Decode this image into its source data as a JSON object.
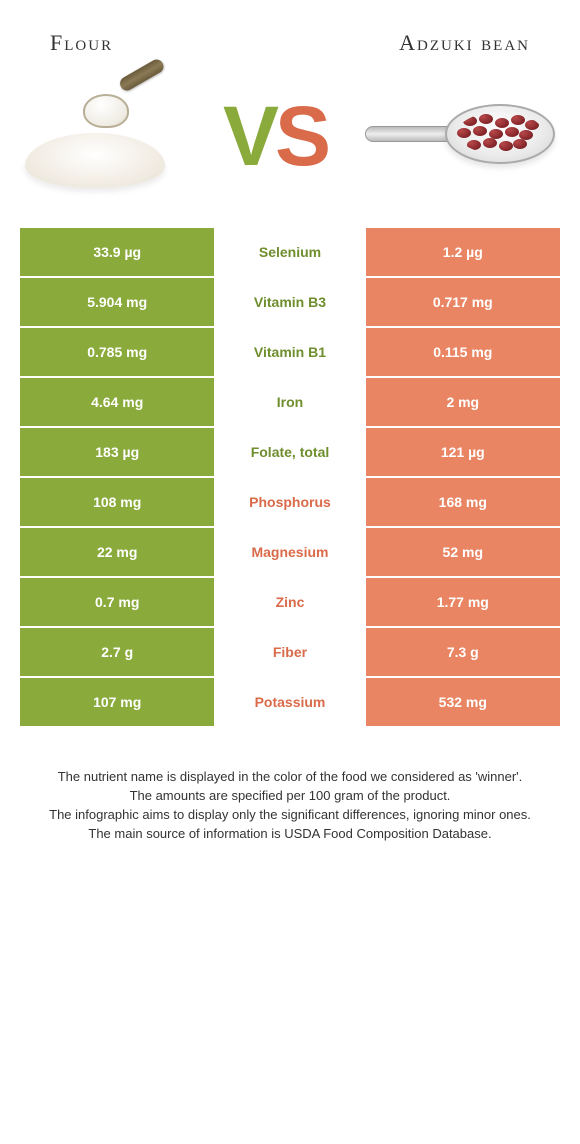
{
  "titles": {
    "left": "Flour",
    "right": "Adzuki bean"
  },
  "vs": {
    "v": "V",
    "s": "S"
  },
  "colors": {
    "left_bg": "#8aaa3b",
    "right_bg": "#e98563",
    "left_text": "#6f8e2e",
    "right_text": "#d96b4a",
    "cell_text": "#ffffff"
  },
  "table": {
    "type": "table",
    "columns": [
      "left_value",
      "nutrient",
      "right_value"
    ],
    "rows": [
      {
        "left": "33.9 µg",
        "nutrient": "Selenium",
        "right": "1.2 µg",
        "winner": "left"
      },
      {
        "left": "5.904 mg",
        "nutrient": "Vitamin B3",
        "right": "0.717 mg",
        "winner": "left"
      },
      {
        "left": "0.785 mg",
        "nutrient": "Vitamin B1",
        "right": "0.115 mg",
        "winner": "left"
      },
      {
        "left": "4.64 mg",
        "nutrient": "Iron",
        "right": "2 mg",
        "winner": "left"
      },
      {
        "left": "183 µg",
        "nutrient": "Folate, total",
        "right": "121 µg",
        "winner": "left"
      },
      {
        "left": "108 mg",
        "nutrient": "Phosphorus",
        "right": "168 mg",
        "winner": "right"
      },
      {
        "left": "22 mg",
        "nutrient": "Magnesium",
        "right": "52 mg",
        "winner": "right"
      },
      {
        "left": "0.7 mg",
        "nutrient": "Zinc",
        "right": "1.77 mg",
        "winner": "right"
      },
      {
        "left": "2.7 g",
        "nutrient": "Fiber",
        "right": "7.3 g",
        "winner": "right"
      },
      {
        "left": "107 mg",
        "nutrient": "Potassium",
        "right": "532 mg",
        "winner": "right"
      }
    ]
  },
  "footnotes": [
    "The nutrient name is displayed in the color of the food we considered as 'winner'.",
    "The amounts are specified per 100 gram of the product.",
    "The infographic aims to display only the significant differences, ignoring minor ones.",
    "The main source of information is USDA Food Composition Database."
  ]
}
